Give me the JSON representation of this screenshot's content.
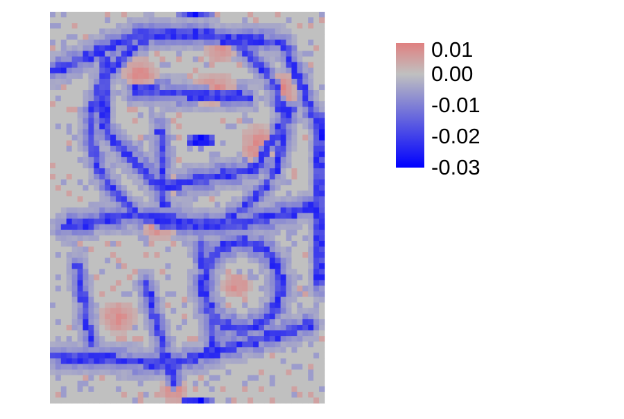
{
  "chart_data": {
    "type": "heatmap",
    "title": "",
    "xlabel": "",
    "ylabel": "",
    "axes_visible": false,
    "grid": false,
    "legend_placement": "right",
    "colorbar": {
      "min": -0.03,
      "max": 0.01,
      "tick_labels": [
        "0.01",
        "0.00",
        "-0.01",
        "-0.02",
        "-0.03"
      ],
      "tick_values": [
        0.01,
        0.0,
        -0.01,
        -0.02,
        -0.03
      ],
      "colors": {
        "low": "#0000ff",
        "mid": "#c0c0c0",
        "high": "#e08080"
      }
    },
    "grid_size": {
      "columns": 50,
      "rows": 70
    },
    "region_values": {
      "background": 0.0,
      "outline_strong": -0.02,
      "outline_soft": -0.008,
      "peak_negative": -0.03,
      "positive_patch": 0.008
    }
  }
}
